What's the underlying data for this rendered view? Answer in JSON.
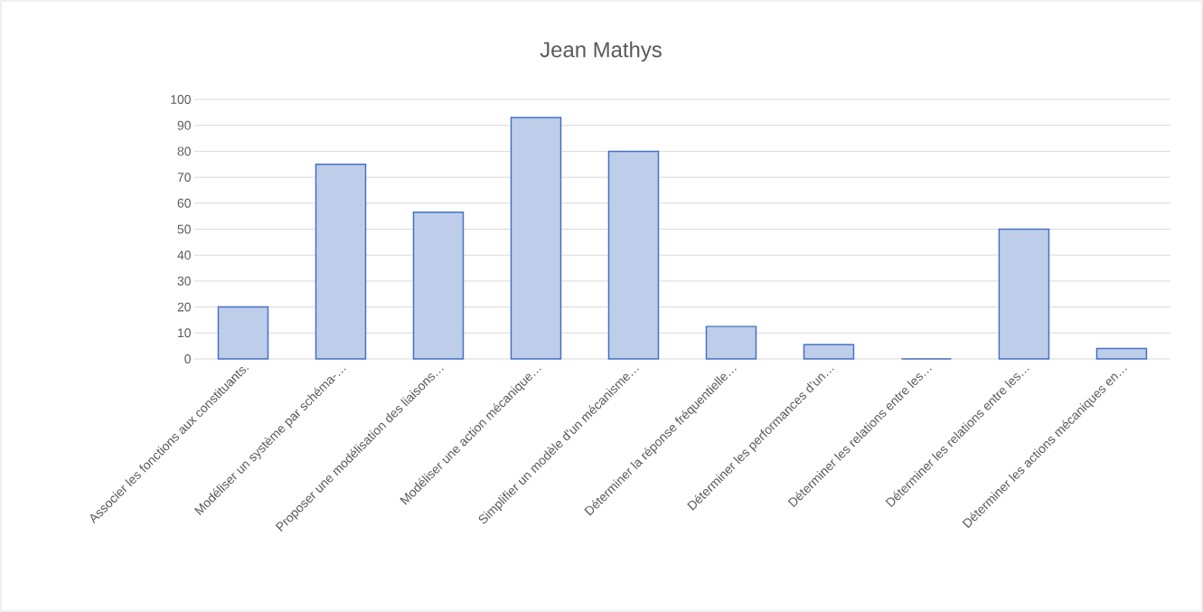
{
  "chart_data": {
    "type": "bar",
    "title": "Jean Mathys",
    "categories": [
      "Associer les fonctions aux constituants.",
      "Modéliser un système par schéma-…",
      "Proposer une modélisation des liaisons…",
      "Modéliser une action mécanique…",
      "Simplifier un modèle d'un mécanisme…",
      "Déterminer la réponse fréquentielle…",
      "Déterminer les performances d'un…",
      "Déterminer les relations entre les…",
      "Déterminer les relations entre les…",
      "Déterminer les actions mécaniques en…"
    ],
    "values": [
      20,
      75,
      56.5,
      93,
      80,
      12.5,
      5.5,
      0,
      50,
      4
    ],
    "color": "#4472c4",
    "ylim": [
      0,
      100
    ],
    "yticks": [
      0,
      10,
      20,
      30,
      40,
      50,
      60,
      70,
      80,
      90,
      100
    ],
    "grid": "y"
  }
}
